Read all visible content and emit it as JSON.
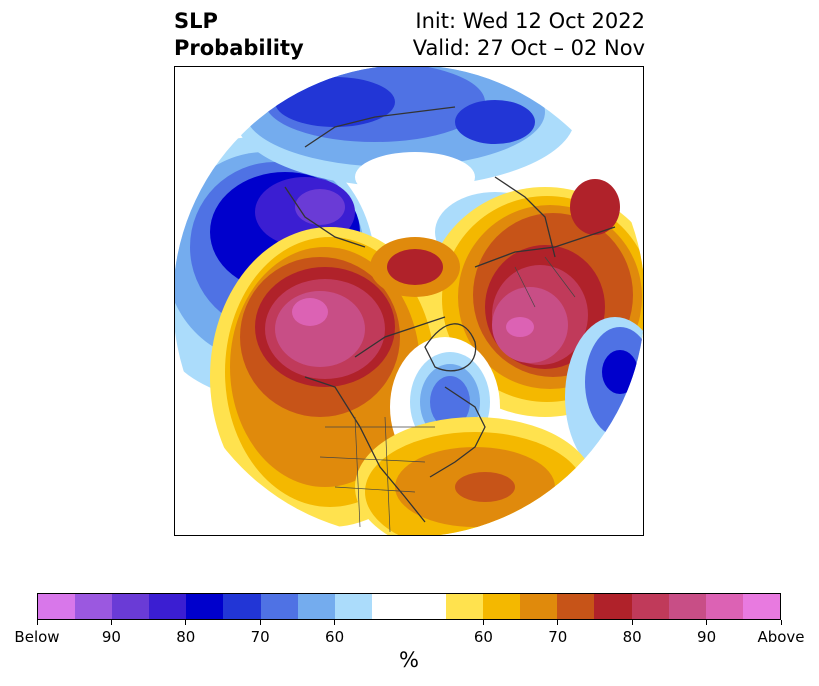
{
  "header": {
    "title_line1": "SLP",
    "title_line2": "Probability",
    "init_label": "Init: Wed 12 Oct 2022",
    "valid_label": "Valid: 27 Oct – 02 Nov"
  },
  "map": {
    "projection": "north-polar-stereographic",
    "regions": [
      {
        "name": "north-america-west-coast",
        "category": "above",
        "level": 90
      },
      {
        "name": "eurasia-ural",
        "category": "above",
        "level": 90
      },
      {
        "name": "north-pacific",
        "category": "below",
        "level": 80
      },
      {
        "name": "north-atlantic-east",
        "category": "below",
        "level": 80
      },
      {
        "name": "greenland-labrador",
        "category": "below",
        "level": 70
      },
      {
        "name": "arctic-siberia",
        "category": "below",
        "level": 70
      },
      {
        "name": "eastern-us-atlantic",
        "category": "above",
        "level": 70
      }
    ]
  },
  "colorbar": {
    "colors": [
      "#d877ea",
      "#9b58e0",
      "#6a3bd6",
      "#3b1ed2",
      "#0000cc",
      "#2236d6",
      "#4f72e4",
      "#74acee",
      "#abdcfb",
      "#ffffff",
      "#ffffff",
      "#ffe24e",
      "#f4b800",
      "#e08a0c",
      "#c75418",
      "#b0222a",
      "#c03a5a",
      "#c84e86",
      "#dc62b4",
      "#e87ae0"
    ],
    "tick_labels": [
      "Below",
      "90",
      "80",
      "70",
      "60",
      "60",
      "70",
      "80",
      "90",
      "Above"
    ],
    "unit_label": "%"
  }
}
